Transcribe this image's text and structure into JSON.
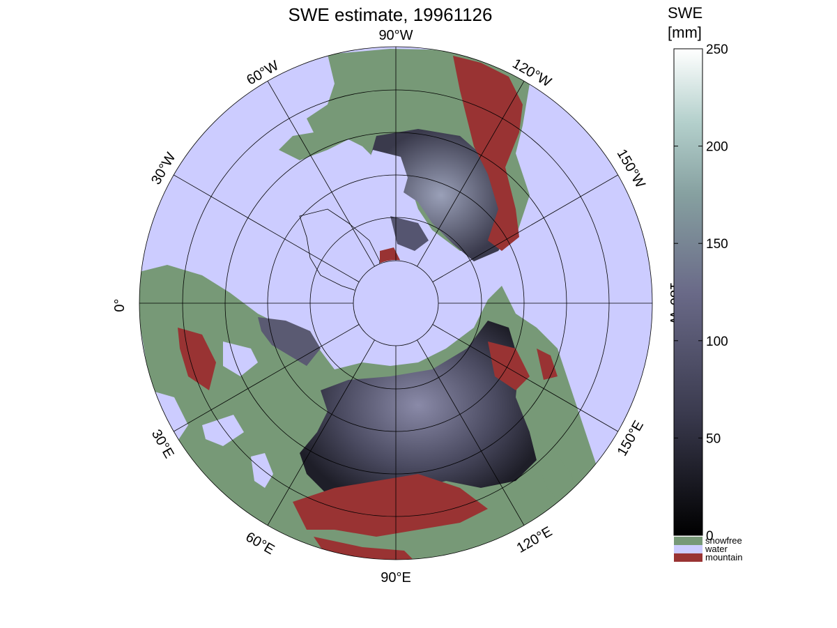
{
  "title": "SWE estimate, 19961126",
  "colorbar": {
    "label_line1": "SWE",
    "label_line2": "[mm]",
    "ticks": [
      "0",
      "50",
      "100",
      "150",
      "200",
      "250"
    ],
    "tick_values": [
      0,
      50,
      100,
      150,
      200,
      250
    ],
    "range": [
      0,
      250
    ]
  },
  "legend": {
    "items": [
      {
        "label": "snowfree",
        "color": "#779977"
      },
      {
        "label": "water",
        "color": "#ccccff"
      },
      {
        "label": "mountain",
        "color": "#993333"
      }
    ]
  },
  "longitude_labels": {
    "lon_90W": "90°W",
    "lon_60W": "60°W",
    "lon_120W": "120°W",
    "lon_30W": "30°W",
    "lon_150W": "150°W",
    "lon_0": "0°",
    "lon_180W": "180°W",
    "lon_30E": "30°E",
    "lon_150E": "150°E",
    "lon_60E": "60°E",
    "lon_120E": "120°E",
    "lon_90E": "90°E"
  },
  "colors": {
    "water": "#ccccff",
    "snowfree": "#779977",
    "mountain": "#993333",
    "snow_dark": "#1a1a24",
    "snow_mid": "#555570",
    "snow_light": "#aac8c0"
  }
}
